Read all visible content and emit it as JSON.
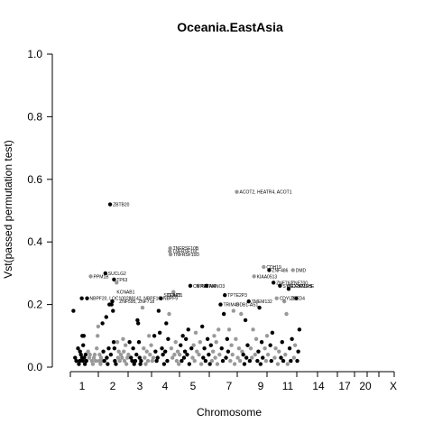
{
  "chart_data": {
    "type": "scatter",
    "title": "Oceania.EastAsia",
    "xlabel": "Chromosome",
    "ylabel": "Vst(passed permutation test)",
    "ylim": [
      0,
      1.0
    ],
    "xlim": [
      0,
      23.5
    ],
    "y_ticks": [
      0.0,
      0.2,
      0.4,
      0.6,
      0.8,
      1.0
    ],
    "y_tick_labels": [
      "0.0",
      "0.2",
      "0.4",
      "0.6",
      "0.8",
      "1.0"
    ],
    "x_tick_labels": [
      "1",
      "2",
      "3",
      "4",
      "5",
      "7",
      "9",
      "11",
      "14",
      "17",
      "20",
      "X"
    ],
    "x_tick_positions": [
      1,
      2,
      3,
      4,
      5,
      7,
      9,
      11,
      14,
      17,
      20,
      23
    ],
    "x_minor_ticks": [
      1,
      2,
      3,
      4,
      5,
      6,
      7,
      8,
      9,
      10,
      11,
      12,
      13,
      14,
      15,
      16,
      17,
      18,
      19,
      20,
      21,
      22,
      23
    ],
    "colors": {
      "odd": "#000000",
      "even": "#999999"
    },
    "grid": false,
    "legend": "none",
    "points": [
      [
        0.4,
        0.18,
        0
      ],
      [
        0.52,
        0.03,
        0
      ],
      [
        0.6,
        0.02,
        0
      ],
      [
        0.72,
        0.06,
        0
      ],
      [
        0.78,
        0.01,
        0
      ],
      [
        0.84,
        0.02,
        0
      ],
      [
        0.86,
        0.05,
        0
      ],
      [
        0.92,
        0.04,
        0
      ],
      [
        0.98,
        0.22,
        0
      ],
      [
        1.0,
        0.03,
        0
      ],
      [
        1.02,
        0.1,
        0
      ],
      [
        1.05,
        0.02,
        0
      ],
      [
        1.08,
        0.07,
        0
      ],
      [
        1.12,
        0.1,
        0
      ],
      [
        1.15,
        0.03,
        0
      ],
      [
        1.2,
        0.01,
        0
      ],
      [
        1.25,
        0.04,
        0
      ],
      [
        1.3,
        0.02,
        0
      ],
      [
        1.35,
        0.22,
        0
      ],
      [
        1.42,
        0.05,
        1
      ],
      [
        1.5,
        0.03,
        1
      ],
      [
        1.55,
        0.04,
        1
      ],
      [
        1.6,
        0.29,
        1
      ],
      [
        1.68,
        0.02,
        1
      ],
      [
        1.75,
        0.01,
        1
      ],
      [
        1.82,
        0.03,
        1
      ],
      [
        1.88,
        0.04,
        1
      ],
      [
        1.95,
        0.02,
        1
      ],
      [
        2.02,
        0.06,
        1
      ],
      [
        2.08,
        0.1,
        1
      ],
      [
        2.12,
        0.13,
        1
      ],
      [
        2.18,
        0.02,
        1
      ],
      [
        2.22,
        0.04,
        1
      ],
      [
        2.28,
        0.01,
        1
      ],
      [
        2.32,
        0.03,
        1
      ],
      [
        2.4,
        0.02,
        1
      ],
      [
        2.42,
        0.14,
        0
      ],
      [
        2.48,
        0.05,
        0
      ],
      [
        2.55,
        0.02,
        0
      ],
      [
        2.62,
        0.3,
        0
      ],
      [
        2.68,
        0.16,
        0
      ],
      [
        2.72,
        0.03,
        0
      ],
      [
        2.78,
        0.01,
        0
      ],
      [
        2.85,
        0.06,
        0
      ],
      [
        2.9,
        0.2,
        0
      ],
      [
        2.95,
        0.52,
        0
      ],
      [
        3.0,
        0.04,
        0
      ],
      [
        3.05,
        0.2,
        0
      ],
      [
        3.1,
        0.21,
        0
      ],
      [
        3.15,
        0.18,
        0
      ],
      [
        3.2,
        0.08,
        0
      ],
      [
        3.22,
        0.28,
        0
      ],
      [
        3.25,
        0.06,
        0
      ],
      [
        3.28,
        0.02,
        0
      ],
      [
        3.35,
        0.01,
        0
      ],
      [
        3.4,
        0.27,
        1
      ],
      [
        3.45,
        0.08,
        1
      ],
      [
        3.5,
        0.03,
        1
      ],
      [
        3.55,
        0.05,
        1
      ],
      [
        3.62,
        0.02,
        1
      ],
      [
        3.7,
        0.04,
        1
      ],
      [
        3.78,
        0.03,
        1
      ],
      [
        3.85,
        0.09,
        1
      ],
      [
        3.9,
        0.05,
        1
      ],
      [
        3.95,
        0.02,
        1
      ],
      [
        4.02,
        0.07,
        1
      ],
      [
        4.08,
        0.01,
        1
      ],
      [
        4.15,
        0.03,
        1
      ],
      [
        4.22,
        0.04,
        1
      ],
      [
        4.3,
        0.08,
        0
      ],
      [
        4.4,
        0.03,
        0
      ],
      [
        4.48,
        0.02,
        0
      ],
      [
        4.55,
        0.06,
        0
      ],
      [
        4.62,
        0.01,
        0
      ],
      [
        4.7,
        0.02,
        0
      ],
      [
        4.78,
        0.04,
        0
      ],
      [
        4.85,
        0.15,
        0
      ],
      [
        4.9,
        0.14,
        0
      ],
      [
        4.95,
        0.08,
        0
      ],
      [
        5.0,
        0.03,
        0
      ],
      [
        5.05,
        0.01,
        0
      ],
      [
        5.1,
        0.02,
        0
      ],
      [
        5.2,
        0.19,
        1
      ],
      [
        5.28,
        0.06,
        1
      ],
      [
        5.35,
        0.03,
        1
      ],
      [
        5.42,
        0.01,
        1
      ],
      [
        5.5,
        0.05,
        1
      ],
      [
        5.58,
        0.02,
        1
      ],
      [
        5.65,
        0.1,
        1
      ],
      [
        5.72,
        0.04,
        1
      ],
      [
        5.8,
        0.07,
        1
      ],
      [
        5.88,
        0.02,
        1
      ],
      [
        5.95,
        0.03,
        1
      ],
      [
        6.02,
        0.1,
        0
      ],
      [
        6.1,
        0.05,
        0
      ],
      [
        6.18,
        0.02,
        0
      ],
      [
        6.25,
        0.03,
        0
      ],
      [
        6.32,
        0.18,
        0
      ],
      [
        6.4,
        0.11,
        0
      ],
      [
        6.48,
        0.22,
        0
      ],
      [
        6.55,
        0.06,
        0
      ],
      [
        6.62,
        0.04,
        0
      ],
      [
        6.7,
        0.01,
        0
      ],
      [
        6.78,
        0.05,
        0
      ],
      [
        6.85,
        0.14,
        0
      ],
      [
        6.92,
        0.02,
        0
      ],
      [
        6.98,
        0.09,
        0
      ],
      [
        7.05,
        0.17,
        1
      ],
      [
        7.1,
        0.37,
        1
      ],
      [
        7.12,
        0.38,
        1
      ],
      [
        7.15,
        0.36,
        1
      ],
      [
        7.2,
        0.06,
        1
      ],
      [
        7.28,
        0.03,
        1
      ],
      [
        7.35,
        0.24,
        1
      ],
      [
        7.42,
        0.04,
        1
      ],
      [
        7.5,
        0.08,
        1
      ],
      [
        7.58,
        0.02,
        1
      ],
      [
        7.65,
        0.05,
        1
      ],
      [
        7.72,
        0.01,
        1
      ],
      [
        7.78,
        0.04,
        1
      ],
      [
        7.85,
        0.07,
        0
      ],
      [
        7.92,
        0.02,
        0
      ],
      [
        8.0,
        0.1,
        0
      ],
      [
        8.08,
        0.03,
        0
      ],
      [
        8.15,
        0.05,
        0
      ],
      [
        8.22,
        0.09,
        0
      ],
      [
        8.3,
        0.04,
        0
      ],
      [
        8.38,
        0.12,
        0
      ],
      [
        8.45,
        0.01,
        0
      ],
      [
        8.52,
        0.26,
        0
      ],
      [
        8.6,
        0.06,
        0
      ],
      [
        8.68,
        0.03,
        1
      ],
      [
        8.75,
        0.07,
        1
      ],
      [
        8.82,
        0.02,
        1
      ],
      [
        8.9,
        0.11,
        1
      ],
      [
        8.98,
        0.05,
        1
      ],
      [
        9.05,
        0.26,
        1
      ],
      [
        9.12,
        0.04,
        1
      ],
      [
        9.2,
        0.08,
        1
      ],
      [
        9.28,
        0.01,
        1
      ],
      [
        9.35,
        0.13,
        0
      ],
      [
        9.42,
        0.03,
        0
      ],
      [
        9.5,
        0.06,
        0
      ],
      [
        9.58,
        0.02,
        0
      ],
      [
        9.65,
        0.26,
        0
      ],
      [
        9.72,
        0.09,
        0
      ],
      [
        9.8,
        0.04,
        0
      ],
      [
        9.88,
        0.01,
        0
      ],
      [
        9.95,
        0.07,
        0
      ],
      [
        10.02,
        0.02,
        1
      ],
      [
        10.1,
        0.05,
        1
      ],
      [
        10.18,
        0.1,
        1
      ],
      [
        10.25,
        0.03,
        1
      ],
      [
        10.32,
        0.08,
        1
      ],
      [
        10.4,
        0.01,
        1
      ],
      [
        10.48,
        0.12,
        1
      ],
      [
        10.55,
        0.04,
        1
      ],
      [
        10.62,
        0.2,
        0
      ],
      [
        10.7,
        0.06,
        0
      ],
      [
        10.78,
        0.02,
        0
      ],
      [
        10.85,
        0.17,
        0
      ],
      [
        10.92,
        0.23,
        0
      ],
      [
        11.0,
        0.03,
        0
      ],
      [
        11.08,
        0.09,
        0
      ],
      [
        11.15,
        0.05,
        0
      ],
      [
        11.22,
        0.12,
        1
      ],
      [
        11.3,
        0.02,
        1
      ],
      [
        11.38,
        0.07,
        1
      ],
      [
        11.45,
        0.04,
        1
      ],
      [
        11.52,
        0.18,
        1
      ],
      [
        11.6,
        0.01,
        1
      ],
      [
        11.68,
        0.09,
        1
      ],
      [
        11.75,
        0.56,
        1
      ],
      [
        11.82,
        0.03,
        1
      ],
      [
        11.9,
        0.06,
        1
      ],
      [
        11.98,
        0.02,
        1
      ],
      [
        12.05,
        0.17,
        1
      ],
      [
        12.12,
        0.05,
        1
      ],
      [
        12.2,
        0.04,
        0
      ],
      [
        12.28,
        0.01,
        0
      ],
      [
        12.35,
        0.15,
        0
      ],
      [
        12.42,
        0.03,
        0
      ],
      [
        12.5,
        0.07,
        0
      ],
      [
        12.58,
        0.21,
        0
      ],
      [
        12.65,
        0.02,
        0
      ],
      [
        12.72,
        0.06,
        1
      ],
      [
        12.8,
        0.03,
        1
      ],
      [
        12.88,
        0.12,
        1
      ],
      [
        12.95,
        0.29,
        1
      ],
      [
        13.02,
        0.04,
        1
      ],
      [
        13.1,
        0.09,
        1
      ],
      [
        13.18,
        0.02,
        0
      ],
      [
        13.25,
        0.05,
        0
      ],
      [
        13.32,
        0.19,
        0
      ],
      [
        13.4,
        0.01,
        0
      ],
      [
        13.48,
        0.08,
        0
      ],
      [
        13.55,
        0.03,
        0
      ],
      [
        13.62,
        0.32,
        1
      ],
      [
        13.7,
        0.06,
        1
      ],
      [
        13.78,
        0.02,
        1
      ],
      [
        13.85,
        0.1,
        1
      ],
      [
        13.92,
        0.04,
        1
      ],
      [
        14.0,
        0.31,
        0
      ],
      [
        14.08,
        0.07,
        0
      ],
      [
        14.15,
        0.02,
        0
      ],
      [
        14.22,
        0.11,
        0
      ],
      [
        14.3,
        0.27,
        0
      ],
      [
        14.38,
        0.03,
        1
      ],
      [
        14.45,
        0.06,
        1
      ],
      [
        14.52,
        0.22,
        1
      ],
      [
        14.6,
        0.01,
        1
      ],
      [
        14.68,
        0.05,
        1
      ],
      [
        14.75,
        0.26,
        0
      ],
      [
        14.82,
        0.03,
        0
      ],
      [
        14.9,
        0.08,
        0
      ],
      [
        14.98,
        0.02,
        0
      ],
      [
        15.05,
        0.21,
        1
      ],
      [
        15.12,
        0.04,
        1
      ],
      [
        15.2,
        0.17,
        1
      ],
      [
        15.28,
        0.01,
        1
      ],
      [
        15.35,
        0.25,
        0
      ],
      [
        15.42,
        0.06,
        0
      ],
      [
        15.5,
        0.02,
        0
      ],
      [
        15.58,
        0.09,
        0
      ],
      [
        15.65,
        0.31,
        1
      ],
      [
        15.72,
        0.03,
        1
      ],
      [
        15.8,
        0.07,
        1
      ],
      [
        15.88,
        0.22,
        0
      ],
      [
        15.95,
        0.02,
        0
      ],
      [
        16.02,
        0.05,
        0
      ],
      [
        16.1,
        0.12,
        0
      ]
    ],
    "annotations": [
      {
        "label": "ZBTB20",
        "x": 2.95,
        "y": 0.52
      },
      {
        "label": "ACOT2, HEATR4, ACOT1",
        "x": 11.75,
        "y": 0.56
      },
      {
        "label": "TNFRSF10B",
        "x": 7.12,
        "y": 0.38
      },
      {
        "label": "TNFRSF10C",
        "x": 7.1,
        "y": 0.37
      },
      {
        "label": "TNFRSF10D",
        "x": 7.15,
        "y": 0.36
      },
      {
        "label": "PPM1B",
        "x": 1.6,
        "y": 0.29
      },
      {
        "label": "SUCLG2",
        "x": 2.62,
        "y": 0.3
      },
      {
        "label": "TP63",
        "x": 3.22,
        "y": 0.28
      },
      {
        "label": "KCNAB1",
        "x": 3.22,
        "y": 0.24
      },
      {
        "label": "NBPF20, LOC100288142, NBPF10, NBPF9",
        "x": 1.35,
        "y": 0.22
      },
      {
        "label": "ZNF595, ZNF718",
        "x": 3.4,
        "y": 0.21
      },
      {
        "label": "STEAP2",
        "x": 6.48,
        "y": 0.23
      },
      {
        "label": "COND1",
        "x": 6.7,
        "y": 0.23
      },
      {
        "label": "CNTN4",
        "x": 8.52,
        "y": 0.26
      },
      {
        "label": "APTAM",
        "x": 9.05,
        "y": 0.26
      },
      {
        "label": "NANO3",
        "x": 9.65,
        "y": 0.26
      },
      {
        "label": "TPTE2P3",
        "x": 10.92,
        "y": 0.23
      },
      {
        "label": "TRIM49",
        "x": 10.62,
        "y": 0.2
      },
      {
        "label": "DDB1-AS1",
        "x": 11.52,
        "y": 0.2
      },
      {
        "label": "TMEM132",
        "x": 12.58,
        "y": 0.21
      },
      {
        "label": "KIAA0513",
        "x": 12.95,
        "y": 0.29
      },
      {
        "label": "CDH19",
        "x": 13.62,
        "y": 0.32
      },
      {
        "label": "ZNF486",
        "x": 14.0,
        "y": 0.31
      },
      {
        "label": "DMD",
        "x": 15.65,
        "y": 0.31
      },
      {
        "label": "ZNF763",
        "x": 14.3,
        "y": 0.27
      },
      {
        "label": "ZNF700",
        "x": 15.35,
        "y": 0.27
      },
      {
        "label": "SYNCRIP",
        "x": 14.75,
        "y": 0.26
      },
      {
        "label": "MEX3C",
        "x": 15.05,
        "y": 0.26
      },
      {
        "label": "TMLHE",
        "x": 15.88,
        "y": 0.26
      },
      {
        "label": "TLR5",
        "x": 16.02,
        "y": 0.26
      },
      {
        "label": "CDYL2",
        "x": 14.52,
        "y": 0.22
      },
      {
        "label": "ZBED4",
        "x": 15.28,
        "y": 0.22
      }
    ]
  }
}
